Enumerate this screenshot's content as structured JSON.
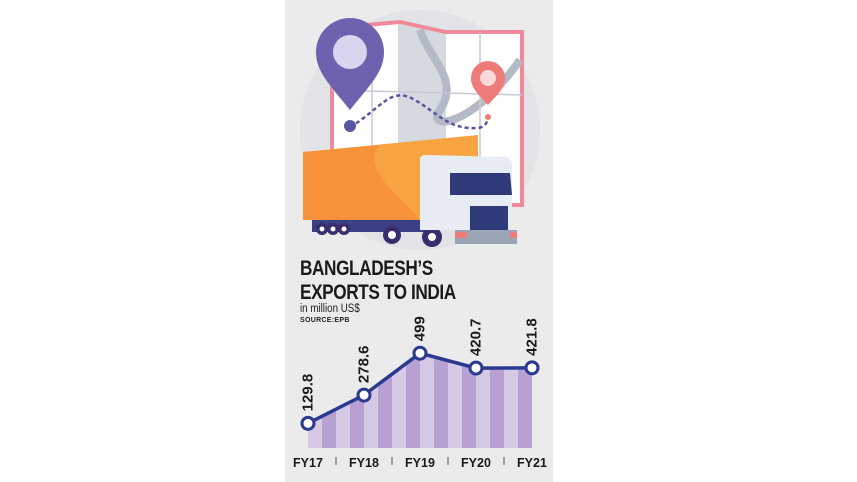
{
  "header": {
    "title_line1": "BANGLADESH’S",
    "title_line2": "EXPORTS TO INDIA",
    "unit": "in million US$",
    "source": "SOURCE:EPB"
  },
  "illustration": {
    "description_icons": [
      "map-icon",
      "location-pin-icon",
      "truck-icon"
    ],
    "colors": {
      "pin_large": "#6e62b0",
      "pin_small": "#ef7a7a",
      "truck_container": "#f9a443",
      "truck_cab": "#e8ecf3",
      "map_border": "#f08a9a"
    }
  },
  "chart_data": {
    "type": "line",
    "categories": [
      "FY17",
      "FY18",
      "FY19",
      "FY20",
      "FY21"
    ],
    "values": [
      129.8,
      278.6,
      499,
      420.7,
      421.8
    ],
    "data_labels": [
      "129.8",
      "278.6",
      "499",
      "420.7",
      "421.8"
    ],
    "title": "BANGLADESH’S EXPORTS TO INDIA",
    "ylabel": "in million US$",
    "ylim": [
      0,
      520
    ],
    "grid": false,
    "legend": "none",
    "colors": {
      "line": "#2b3a8f",
      "marker_fill": "#ffffff",
      "area_light": "#d6c9e6",
      "area_dark": "#b7a1d3"
    }
  }
}
